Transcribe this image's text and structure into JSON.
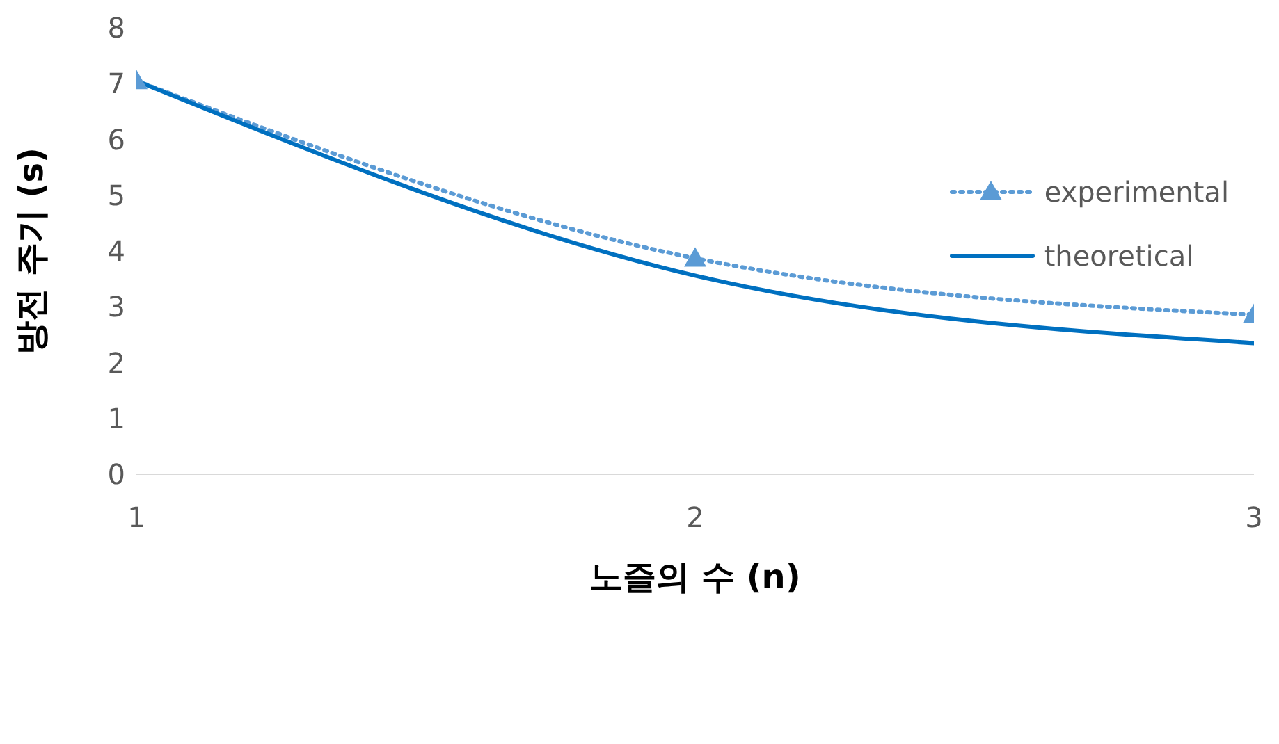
{
  "chart_data": {
    "type": "line",
    "xlabel": "노즐의 수 (n)",
    "ylabel": "방전 주기 (s)",
    "x": [
      1,
      2,
      3
    ],
    "xlim": [
      1,
      3
    ],
    "xticks": [
      1,
      2,
      3
    ],
    "ylim": [
      0,
      8
    ],
    "yticks": [
      0,
      1,
      2,
      3,
      4,
      5,
      6,
      7,
      8
    ],
    "grid": false,
    "legend": "right",
    "series": [
      {
        "name": "experimental",
        "color": "#5b9bd5",
        "values": [
          7.05,
          3.87,
          2.86
        ],
        "marker": "triangle",
        "line_style": "dotted"
      },
      {
        "name": "theoretical",
        "color": "#0070c0",
        "values": [
          7.05,
          3.56,
          2.35
        ],
        "marker": "none",
        "line_style": "solid"
      }
    ]
  }
}
